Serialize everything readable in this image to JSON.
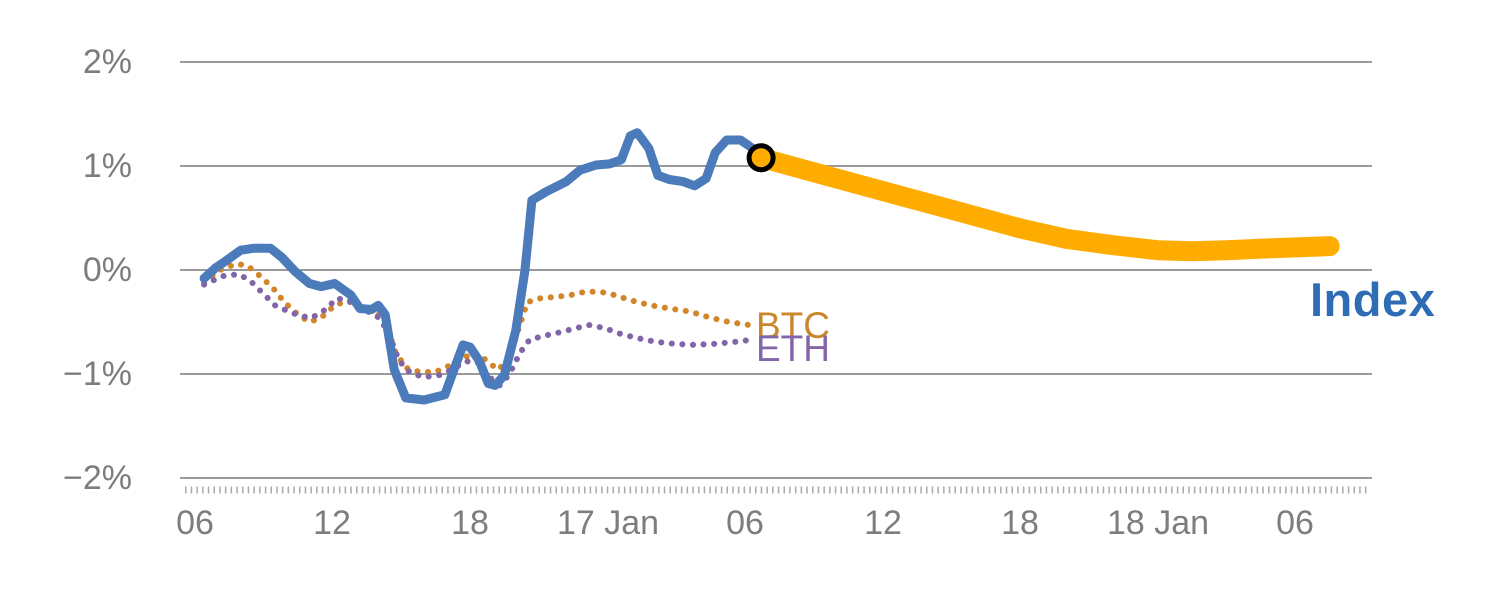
{
  "chart_data": {
    "type": "line",
    "x_unit": "hours",
    "xlim": [
      -0.65,
      51.35
    ],
    "ylim": [
      -2,
      2
    ],
    "grid": "horizontal",
    "colors": {
      "grid": "#9a9a9a",
      "axis_text": "#7d7d7d",
      "index_line": "#4b7bbb",
      "forecast_band": "#ffac00",
      "btc_line": "#d2862a",
      "eth_line": "#8265a8",
      "marker_stroke": "#000000"
    },
    "x_ticks": [
      {
        "t": 0,
        "label": "06"
      },
      {
        "t": 6,
        "label": "12"
      },
      {
        "t": 12,
        "label": "18"
      },
      {
        "t": 18,
        "label": "17 Jan"
      },
      {
        "t": 24,
        "label": "06"
      },
      {
        "t": 30,
        "label": "12"
      },
      {
        "t": 36,
        "label": "18"
      },
      {
        "t": 42,
        "label": "18 Jan"
      },
      {
        "t": 48,
        "label": "06"
      }
    ],
    "y_ticks": [
      {
        "v": 2,
        "label": "2%"
      },
      {
        "v": 1,
        "label": "1%"
      },
      {
        "v": 0,
        "label": "0%"
      },
      {
        "v": -1,
        "label": "−1%"
      },
      {
        "v": -2,
        "label": "−2%"
      }
    ],
    "series": [
      {
        "name": "BTC",
        "color": "#d2862a",
        "style": "dotted",
        "width": 6,
        "points": [
          [
            0.4,
            -0.12
          ],
          [
            1.1,
            0.0
          ],
          [
            1.8,
            0.06
          ],
          [
            2.3,
            0.04
          ],
          [
            2.8,
            -0.05
          ],
          [
            3.4,
            -0.17
          ],
          [
            3.9,
            -0.31
          ],
          [
            4.5,
            -0.43
          ],
          [
            5.0,
            -0.5
          ],
          [
            5.5,
            -0.46
          ],
          [
            6.1,
            -0.34
          ],
          [
            6.7,
            -0.29
          ],
          [
            7.2,
            -0.34
          ],
          [
            7.7,
            -0.4
          ],
          [
            8.3,
            -0.46
          ],
          [
            8.7,
            -0.77
          ],
          [
            9.2,
            -0.94
          ],
          [
            9.8,
            -0.98
          ],
          [
            10.5,
            -0.98
          ],
          [
            11.1,
            -0.92
          ],
          [
            11.7,
            -0.85
          ],
          [
            12.2,
            -0.79
          ],
          [
            12.8,
            -0.88
          ],
          [
            13.2,
            -0.96
          ],
          [
            13.7,
            -0.87
          ],
          [
            14.1,
            -0.58
          ],
          [
            14.5,
            -0.31
          ],
          [
            15.1,
            -0.27
          ],
          [
            15.7,
            -0.26
          ],
          [
            16.4,
            -0.24
          ],
          [
            17.0,
            -0.21
          ],
          [
            17.7,
            -0.21
          ],
          [
            18.3,
            -0.24
          ],
          [
            19.0,
            -0.29
          ],
          [
            19.9,
            -0.34
          ],
          [
            20.7,
            -0.37
          ],
          [
            21.6,
            -0.4
          ],
          [
            22.5,
            -0.46
          ],
          [
            23.3,
            -0.5
          ],
          [
            24.2,
            -0.53
          ]
        ]
      },
      {
        "name": "ETH",
        "color": "#8265a8",
        "style": "dotted",
        "width": 6,
        "points": [
          [
            0.4,
            -0.14
          ],
          [
            1.2,
            -0.06
          ],
          [
            1.9,
            -0.04
          ],
          [
            2.4,
            -0.1
          ],
          [
            2.9,
            -0.21
          ],
          [
            3.5,
            -0.34
          ],
          [
            4.1,
            -0.4
          ],
          [
            4.6,
            -0.44
          ],
          [
            5.1,
            -0.46
          ],
          [
            5.7,
            -0.38
          ],
          [
            6.2,
            -0.27
          ],
          [
            6.8,
            -0.31
          ],
          [
            7.3,
            -0.38
          ],
          [
            7.9,
            -0.43
          ],
          [
            8.4,
            -0.58
          ],
          [
            8.9,
            -0.87
          ],
          [
            9.4,
            -0.99
          ],
          [
            10.0,
            -1.03
          ],
          [
            10.7,
            -1.01
          ],
          [
            11.2,
            -0.96
          ],
          [
            11.8,
            -0.88
          ],
          [
            12.3,
            -0.88
          ],
          [
            12.9,
            -1.04
          ],
          [
            13.3,
            -1.11
          ],
          [
            13.7,
            -1.01
          ],
          [
            14.2,
            -0.79
          ],
          [
            14.6,
            -0.67
          ],
          [
            15.3,
            -0.63
          ],
          [
            15.9,
            -0.6
          ],
          [
            16.6,
            -0.56
          ],
          [
            17.2,
            -0.53
          ],
          [
            17.9,
            -0.56
          ],
          [
            18.5,
            -0.61
          ],
          [
            19.2,
            -0.65
          ],
          [
            20.1,
            -0.69
          ],
          [
            20.9,
            -0.71
          ],
          [
            21.8,
            -0.72
          ],
          [
            22.7,
            -0.71
          ],
          [
            23.6,
            -0.69
          ],
          [
            24.3,
            -0.67
          ]
        ]
      },
      {
        "name": "Index forecast",
        "color": "#ffac00",
        "style": "solid",
        "width": 20,
        "points": [
          [
            24.7,
            1.08
          ],
          [
            26.0,
            1.0
          ],
          [
            28.0,
            0.88
          ],
          [
            30.0,
            0.76
          ],
          [
            32.0,
            0.64
          ],
          [
            34.0,
            0.52
          ],
          [
            36.0,
            0.4
          ],
          [
            38.0,
            0.3
          ],
          [
            40.0,
            0.24
          ],
          [
            42.0,
            0.19
          ],
          [
            43.5,
            0.18
          ],
          [
            45.0,
            0.19
          ],
          [
            47.0,
            0.21
          ],
          [
            49.5,
            0.23
          ]
        ]
      },
      {
        "name": "Index",
        "color": "#4b7bbb",
        "style": "solid",
        "width": 9,
        "points": [
          [
            0.4,
            -0.08
          ],
          [
            0.9,
            0.02
          ],
          [
            1.3,
            0.08
          ],
          [
            2.0,
            0.19
          ],
          [
            2.6,
            0.21
          ],
          [
            3.3,
            0.21
          ],
          [
            3.8,
            0.12
          ],
          [
            4.4,
            -0.02
          ],
          [
            5.0,
            -0.13
          ],
          [
            5.5,
            -0.16
          ],
          [
            6.1,
            -0.13
          ],
          [
            6.8,
            -0.24
          ],
          [
            7.2,
            -0.37
          ],
          [
            7.7,
            -0.38
          ],
          [
            8.0,
            -0.34
          ],
          [
            8.3,
            -0.43
          ],
          [
            8.7,
            -0.96
          ],
          [
            9.2,
            -1.23
          ],
          [
            10.0,
            -1.25
          ],
          [
            10.9,
            -1.2
          ],
          [
            11.3,
            -0.96
          ],
          [
            11.7,
            -0.72
          ],
          [
            12.0,
            -0.74
          ],
          [
            12.4,
            -0.87
          ],
          [
            12.8,
            -1.09
          ],
          [
            13.1,
            -1.11
          ],
          [
            13.5,
            -1.01
          ],
          [
            14.0,
            -0.58
          ],
          [
            14.4,
            0.0
          ],
          [
            14.7,
            0.67
          ],
          [
            15.3,
            0.75
          ],
          [
            16.2,
            0.85
          ],
          [
            16.8,
            0.96
          ],
          [
            17.5,
            1.01
          ],
          [
            18.1,
            1.02
          ],
          [
            18.6,
            1.06
          ],
          [
            19.0,
            1.29
          ],
          [
            19.3,
            1.32
          ],
          [
            19.8,
            1.17
          ],
          [
            20.2,
            0.91
          ],
          [
            20.7,
            0.87
          ],
          [
            21.3,
            0.85
          ],
          [
            21.8,
            0.81
          ],
          [
            22.3,
            0.88
          ],
          [
            22.7,
            1.13
          ],
          [
            23.2,
            1.25
          ],
          [
            23.8,
            1.25
          ],
          [
            24.2,
            1.19
          ],
          [
            24.7,
            1.1
          ]
        ]
      }
    ],
    "marker": {
      "series": "Index forecast",
      "t": 24.7,
      "v": 1.08,
      "fill": "#ffac00",
      "stroke": "#000000",
      "radius": 12
    },
    "labels": [
      {
        "text": "Index",
        "color": "#2e6cb5"
      },
      {
        "text": "BTC",
        "color": "#c9862b"
      },
      {
        "text": "ETH",
        "color": "#8366a9"
      }
    ]
  }
}
